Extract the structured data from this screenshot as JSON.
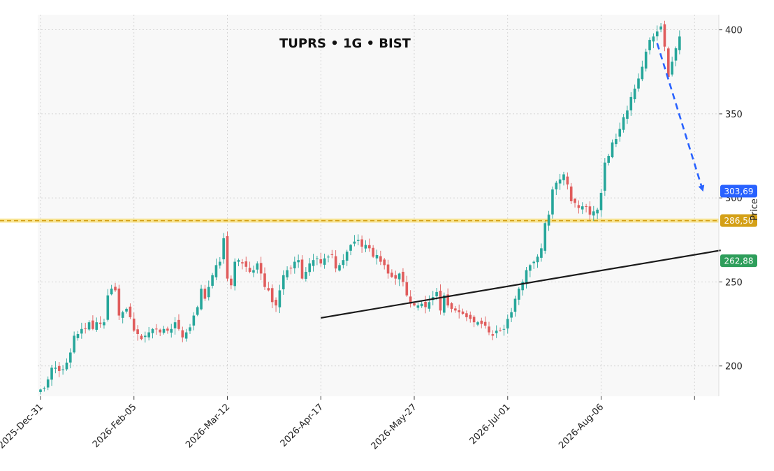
{
  "chart_data": {
    "type": "candlestick",
    "title": "TUPRS • 1G • BIST",
    "ylabel": "Price",
    "ylim": [
      182,
      409
    ],
    "yticks": [
      200,
      250,
      300,
      350,
      400
    ],
    "x_tick_labels": [
      "2025-Dec-31",
      "2026-Feb-05",
      "2026-Mar-12",
      "2026-Apr-17",
      "2026-May-27",
      "2026-Jul-01",
      "2026-Aug-06"
    ],
    "x_tick_indices": [
      0,
      25,
      50,
      75,
      100,
      125,
      150
    ],
    "bar_count": 183,
    "grid": true,
    "colors": {
      "up": "#26a69a",
      "down": "#e05c5c",
      "background": "#f8f8f8",
      "grid": "#cccccc",
      "support": "#d4a017",
      "support_band": "#f7dc6f",
      "trend": "#1a1a1a",
      "projection": "#2962ff",
      "target_badge": "#2962ff",
      "support_badge": "#d4a017",
      "trend_badge": "#2e9e5b"
    },
    "close_series": [
      186,
      187,
      192,
      199,
      199,
      197,
      198,
      202,
      208,
      218,
      219,
      222,
      222,
      226,
      222,
      226,
      225,
      226,
      242,
      246,
      245,
      230,
      232,
      234,
      229,
      221,
      219,
      216,
      218,
      220,
      222,
      222,
      220,
      222,
      221,
      222,
      226,
      222,
      217,
      220,
      223,
      230,
      235,
      246,
      240,
      247,
      254,
      260,
      262,
      276,
      252,
      248,
      262,
      263,
      261,
      259,
      256,
      257,
      261,
      255,
      247,
      245,
      238,
      236,
      245,
      254,
      257,
      258,
      262,
      263,
      252,
      256,
      261,
      263,
      264,
      261,
      264,
      265,
      266,
      258,
      260,
      263,
      268,
      272,
      274,
      275,
      271,
      272,
      270,
      265,
      266,
      262,
      260,
      255,
      253,
      252,
      255,
      250,
      242,
      237,
      236,
      236,
      237,
      235,
      238,
      241,
      244,
      233,
      242,
      236,
      234,
      233,
      232,
      231,
      229,
      228,
      226,
      226,
      225,
      224,
      220,
      218,
      221,
      221,
      222,
      228,
      232,
      240,
      246,
      250,
      257,
      260,
      262,
      265,
      270,
      285,
      290,
      305,
      309,
      311,
      314,
      308,
      298,
      297,
      294,
      295,
      295,
      290,
      292,
      293,
      303,
      321,
      325,
      333,
      335,
      341,
      348,
      352,
      360,
      365,
      371,
      378,
      387,
      394,
      396,
      399,
      402,
      390,
      372,
      381,
      389,
      396
    ],
    "annotations": {
      "support_level": 286.5,
      "support_band": [
        285.3,
        287.7
      ],
      "support_label": "286,50",
      "trend_line": {
        "from": {
          "index": 75,
          "value": 228.6
        },
        "to": {
          "index": 182,
          "value": 268.8
        }
      },
      "trend_label": "262,88",
      "projection": {
        "from": {
          "index": 165,
          "value": 392
        },
        "to": {
          "index": 176,
          "value": 303.7
        }
      },
      "target_label": "303,69"
    }
  }
}
